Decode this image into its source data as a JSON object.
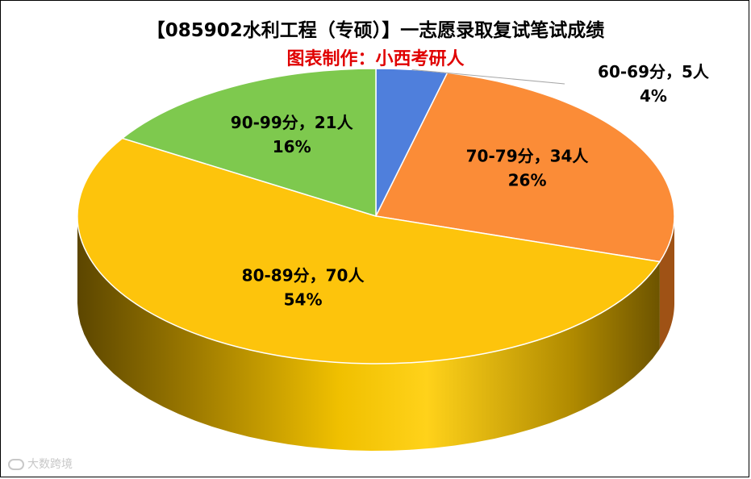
{
  "chart_data": {
    "type": "pie",
    "title": "【085902水利工程（专硕）】一志愿录取复试笔试成绩",
    "subtitle": "图表制作：小西考研人",
    "categories": [
      "60-69分",
      "70-79分",
      "80-89分",
      "90-99分"
    ],
    "values": [
      5,
      34,
      70,
      21
    ],
    "percents": [
      "4%",
      "26%",
      "54%",
      "16%"
    ],
    "labels": [
      "60-69分，5人",
      "70-79分，34人",
      "80-89分，70人",
      "90-99分，21人"
    ],
    "colors": [
      "#4f7fdc",
      "#fb8c37",
      "#fdc40c",
      "#7ec94e"
    ],
    "side_colors": [
      "#31529a",
      "#9f5215",
      "#8a6a00",
      "#4f8830"
    ],
    "style": "3d-pie"
  },
  "subtitle_color": "#e00000",
  "watermark": {
    "text": "大数跨境",
    "icon": "watermark-logo-icon"
  }
}
